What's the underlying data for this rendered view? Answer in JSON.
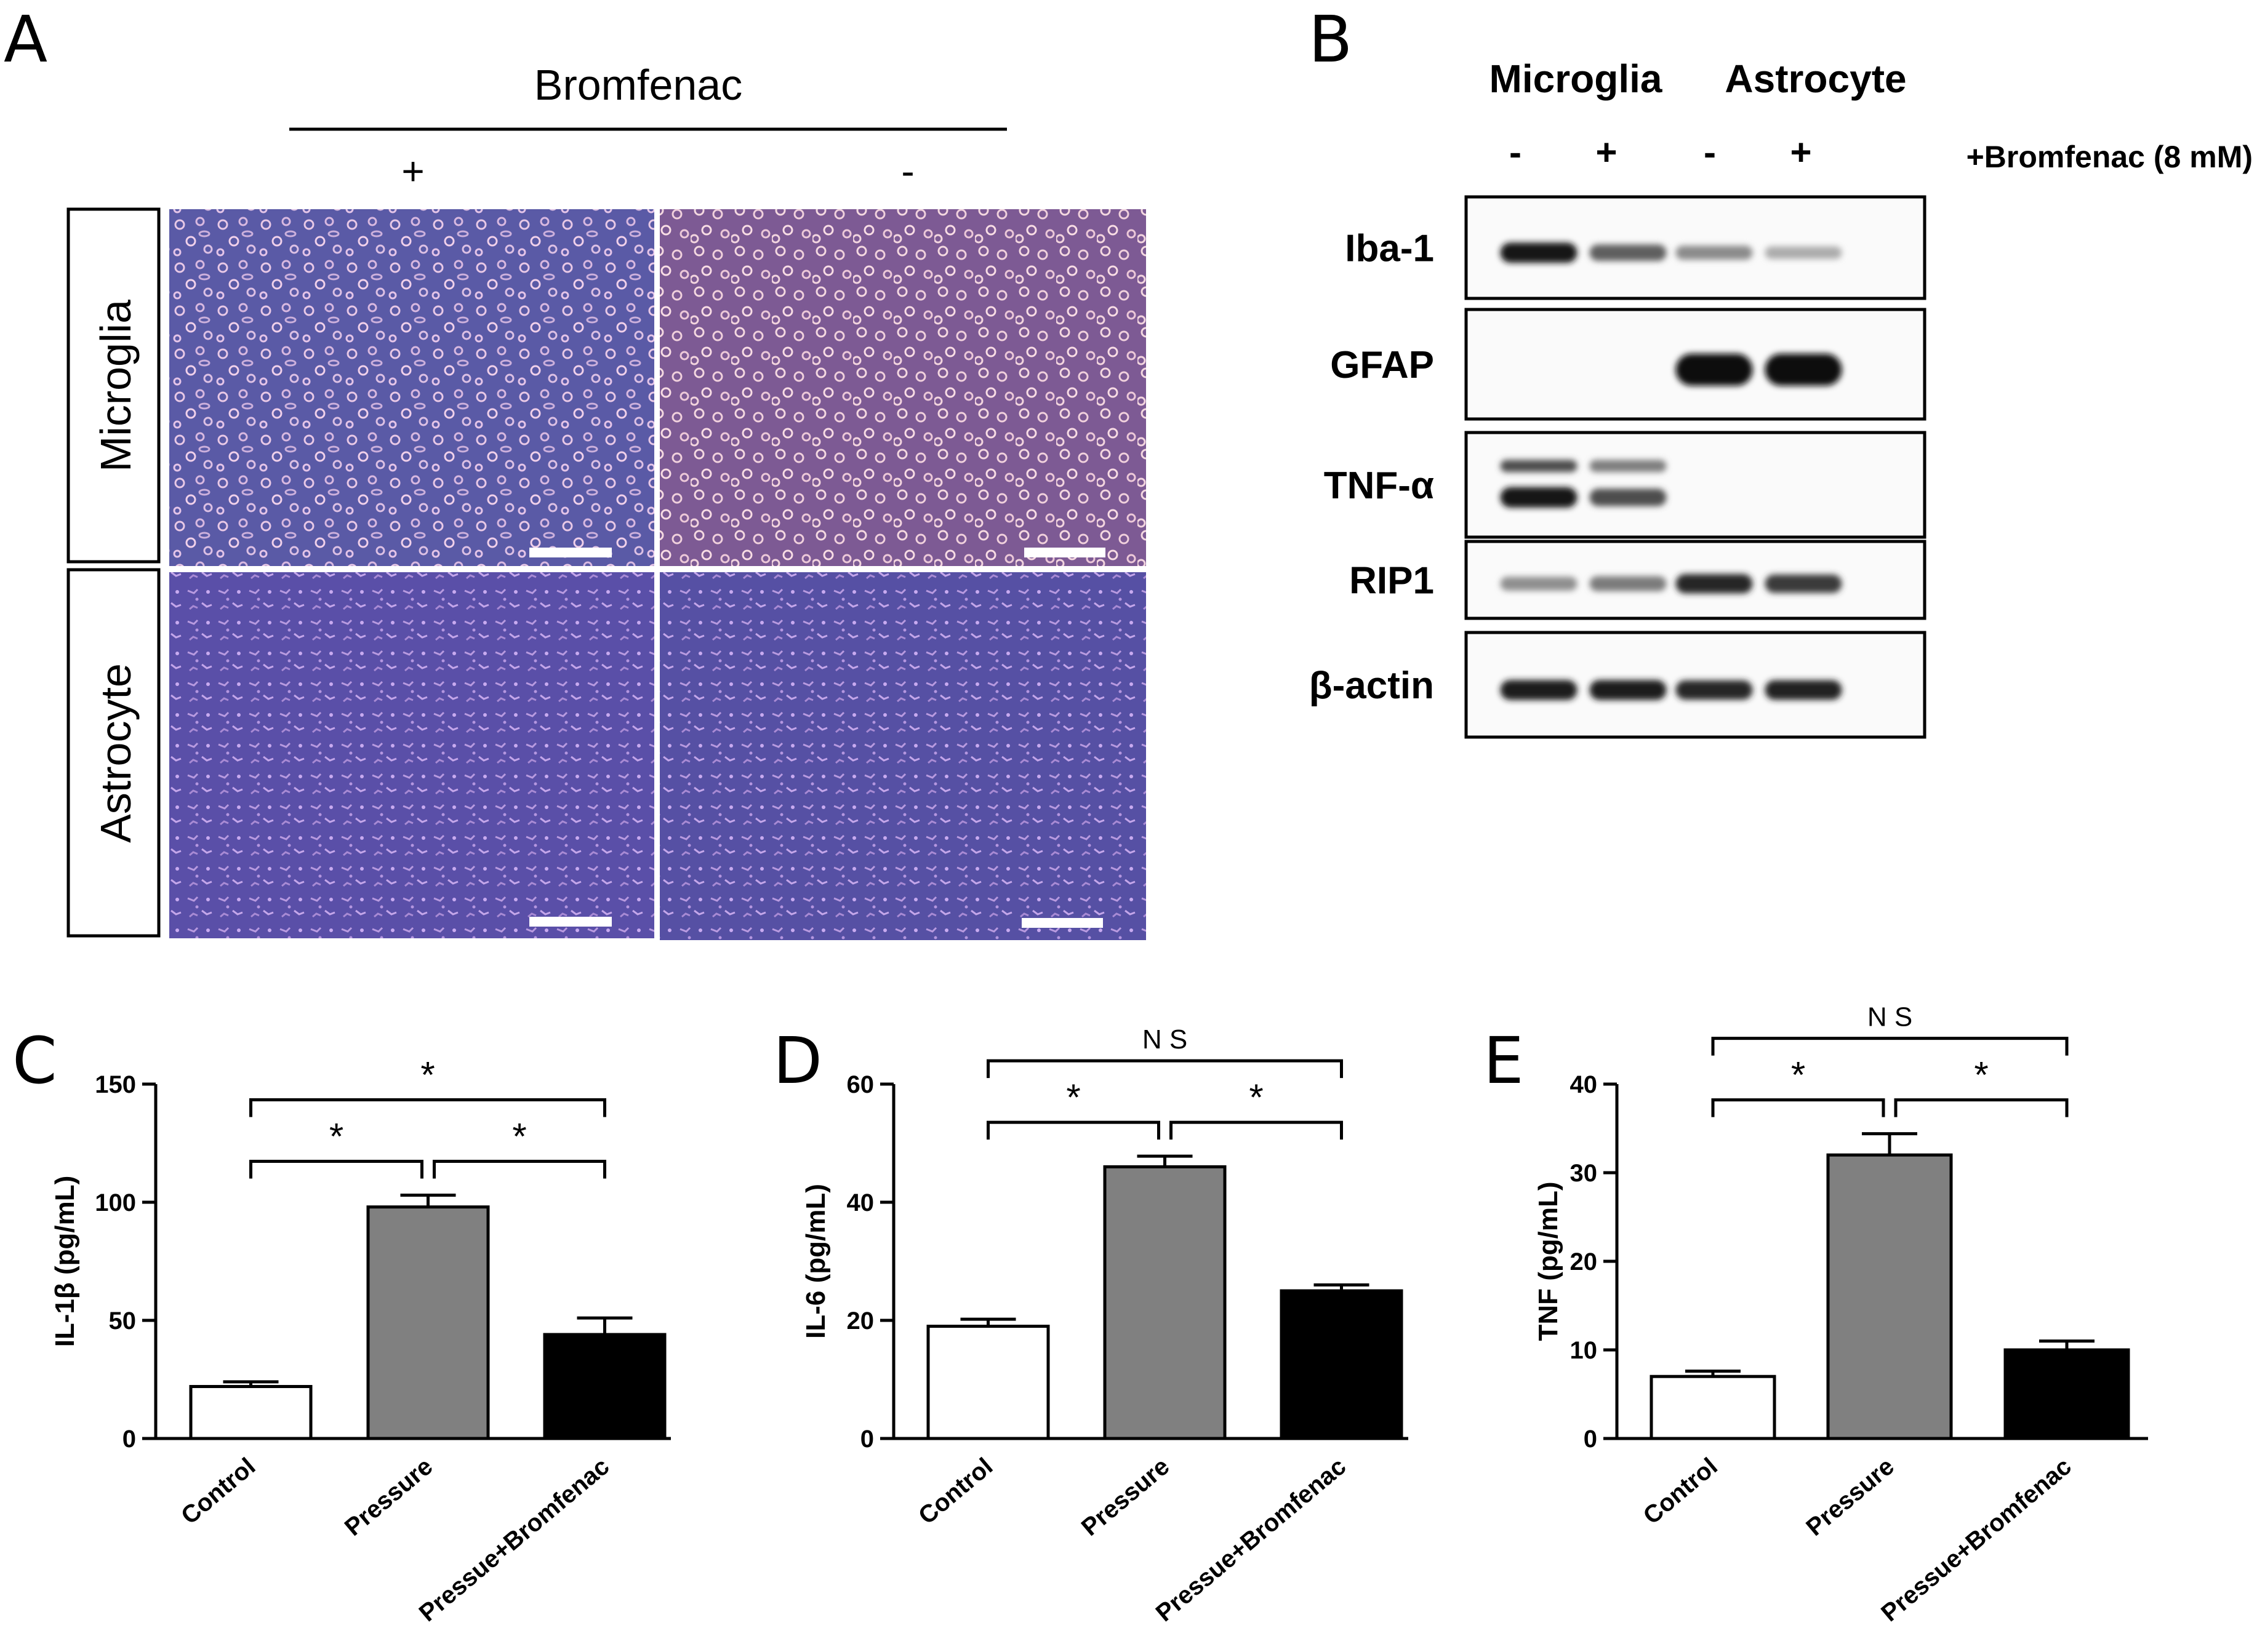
{
  "panel_a": {
    "letter": "A",
    "drug": "Bromfenac",
    "cols": [
      "+",
      "-"
    ],
    "rows": [
      "Microglia",
      "Astrocyte"
    ]
  },
  "panel_b": {
    "letter": "B",
    "groups": [
      "Microglia",
      "Astrocyte"
    ],
    "lane_signs": [
      "-",
      "+",
      "-",
      "+"
    ],
    "treatment": "+Bromfenac (8 mM)",
    "blots": [
      {
        "label": "Iba-1",
        "bands": [
          0.92,
          0.55,
          0.32,
          0.15
        ],
        "dark": true
      },
      {
        "label": "GFAP",
        "bands": [
          0.0,
          0.0,
          1.0,
          1.0
        ],
        "dark": true
      },
      {
        "label": "TNF-α",
        "bands": [
          0.95,
          0.65,
          0.02,
          0.02
        ],
        "double": true
      },
      {
        "label": "RIP1",
        "bands": [
          0.3,
          0.4,
          0.85,
          0.75
        ],
        "dark": false
      },
      {
        "label": "β-actin",
        "bands": [
          0.9,
          0.9,
          0.85,
          0.88
        ],
        "dark": true
      }
    ]
  },
  "chart_data": [
    {
      "type": "bar",
      "letter": "C",
      "ylabel": "IL-1β (pg/mL)",
      "categories": [
        "Control",
        "Pressure",
        "Pressue+Bromfenac"
      ],
      "values": [
        22,
        98,
        44
      ],
      "errors": [
        2,
        5,
        7
      ],
      "colors": [
        "#ffffff",
        "#808080",
        "#000000"
      ],
      "ylim": [
        0,
        150
      ],
      "yticks": [
        0,
        50,
        100,
        150
      ],
      "sig": [
        {
          "from": 0,
          "to": 1,
          "label": "*",
          "level": 0
        },
        {
          "from": 1,
          "to": 2,
          "label": "*",
          "level": 0
        },
        {
          "from": 0,
          "to": 2,
          "label": "*",
          "level": 1
        }
      ]
    },
    {
      "type": "bar",
      "letter": "D",
      "ylabel": "IL-6 (pg/mL)",
      "categories": [
        "Control",
        "Pressure",
        "Pressue+Bromfenac"
      ],
      "values": [
        19,
        46,
        25
      ],
      "errors": [
        1.2,
        1.8,
        1
      ],
      "colors": [
        "#ffffff",
        "#808080",
        "#000000"
      ],
      "ylim": [
        0,
        60
      ],
      "yticks": [
        0,
        20,
        40,
        60
      ],
      "sig": [
        {
          "from": 0,
          "to": 1,
          "label": "*",
          "level": 0
        },
        {
          "from": 1,
          "to": 2,
          "label": "*",
          "level": 0
        },
        {
          "from": 0,
          "to": 2,
          "label": "N S",
          "level": 1
        }
      ]
    },
    {
      "type": "bar",
      "letter": "E",
      "ylabel": "TNF (pg/mL)",
      "categories": [
        "Control",
        "Pressure",
        "Pressue+Bromfenac"
      ],
      "values": [
        7,
        32,
        10
      ],
      "errors": [
        0.6,
        2.4,
        1
      ],
      "colors": [
        "#ffffff",
        "#808080",
        "#000000"
      ],
      "ylim": [
        0,
        40
      ],
      "yticks": [
        0,
        10,
        20,
        30,
        40
      ],
      "sig": [
        {
          "from": 0,
          "to": 1,
          "label": "*",
          "level": 0
        },
        {
          "from": 1,
          "to": 2,
          "label": "*",
          "level": 0
        },
        {
          "from": 0,
          "to": 2,
          "label": "N S",
          "level": 1
        }
      ]
    }
  ]
}
